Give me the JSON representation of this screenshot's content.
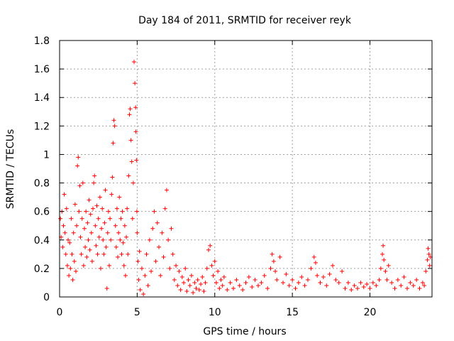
{
  "chart_data": {
    "type": "scatter",
    "title": "Day 184 of 2011, SRMTID for receiver reyk",
    "xlabel": "GPS time / hours",
    "ylabel": "SRMTID / TECUs",
    "xlim": [
      0,
      24
    ],
    "ylim": [
      0,
      1.8
    ],
    "xticks": [
      0,
      5,
      10,
      15,
      20
    ],
    "yticks": [
      0,
      0.2,
      0.4,
      0.6,
      0.8,
      1,
      1.2,
      1.4,
      1.6,
      1.8
    ],
    "xtick_labels": [
      "0",
      "5",
      "10",
      "15",
      "20"
    ],
    "ytick_labels": [
      "0",
      "0.2",
      "0.4",
      "0.6",
      "0.8",
      "1",
      "1.2",
      "1.4",
      "1.6",
      "1.8"
    ],
    "grid": true,
    "marker": "+",
    "color": "#ff0000",
    "series": [
      {
        "name": "SRMTID",
        "points": [
          [
            0.05,
            0.55
          ],
          [
            0.1,
            0.42
          ],
          [
            0.15,
            0.6
          ],
          [
            0.2,
            0.35
          ],
          [
            0.25,
            0.5
          ],
          [
            0.3,
            0.72
          ],
          [
            0.35,
            0.45
          ],
          [
            0.4,
            0.3
          ],
          [
            0.45,
            0.62
          ],
          [
            0.5,
            0.22
          ],
          [
            0.55,
            0.4
          ],
          [
            0.6,
            0.15
          ],
          [
            0.65,
            0.38
          ],
          [
            0.7,
            0.2
          ],
          [
            0.75,
            0.55
          ],
          [
            0.8,
            0.3
          ],
          [
            0.85,
            0.12
          ],
          [
            0.9,
            0.45
          ],
          [
            0.95,
            0.25
          ],
          [
            1.0,
            0.65
          ],
          [
            1.05,
            0.18
          ],
          [
            1.1,
            0.5
          ],
          [
            1.15,
            0.92
          ],
          [
            1.2,
            0.98
          ],
          [
            1.25,
            0.6
          ],
          [
            1.3,
            0.78
          ],
          [
            1.35,
            0.42
          ],
          [
            1.4,
            0.3
          ],
          [
            1.45,
            0.55
          ],
          [
            1.5,
            0.8
          ],
          [
            1.55,
            0.22
          ],
          [
            1.6,
            0.48
          ],
          [
            1.65,
            0.35
          ],
          [
            1.7,
            0.6
          ],
          [
            1.75,
            0.28
          ],
          [
            1.8,
            0.52
          ],
          [
            1.85,
            0.4
          ],
          [
            1.9,
            0.68
          ],
          [
            1.95,
            0.33
          ],
          [
            2.0,
            0.58
          ],
          [
            2.05,
            0.45
          ],
          [
            2.1,
            0.25
          ],
          [
            2.15,
            0.62
          ],
          [
            2.2,
            0.8
          ],
          [
            2.25,
            0.85
          ],
          [
            2.3,
            0.5
          ],
          [
            2.35,
            0.36
          ],
          [
            2.4,
            0.64
          ],
          [
            2.45,
            0.3
          ],
          [
            2.5,
            0.55
          ],
          [
            2.55,
            0.42
          ],
          [
            2.6,
            0.7
          ],
          [
            2.65,
            0.2
          ],
          [
            2.7,
            0.48
          ],
          [
            2.75,
            0.62
          ],
          [
            2.8,
            0.4
          ],
          [
            2.85,
            0.3
          ],
          [
            2.9,
            0.52
          ],
          [
            2.95,
            0.75
          ],
          [
            3.0,
            0.35
          ],
          [
            3.05,
            0.06
          ],
          [
            3.1,
            0.45
          ],
          [
            3.15,
            0.6
          ],
          [
            3.2,
            0.22
          ],
          [
            3.25,
            0.55
          ],
          [
            3.3,
            0.4
          ],
          [
            3.35,
            0.72
          ],
          [
            3.4,
            0.84
          ],
          [
            3.45,
            1.08
          ],
          [
            3.5,
            1.24
          ],
          [
            3.55,
            1.2
          ],
          [
            3.6,
            0.5
          ],
          [
            3.65,
            0.35
          ],
          [
            3.7,
            0.62
          ],
          [
            3.75,
            0.28
          ],
          [
            3.8,
            0.45
          ],
          [
            3.85,
            0.7
          ],
          [
            3.9,
            0.4
          ],
          [
            3.95,
            0.55
          ],
          [
            4.0,
            0.3
          ],
          [
            4.05,
            0.6
          ],
          [
            4.1,
            0.38
          ],
          [
            4.15,
            0.22
          ],
          [
            4.2,
            0.5
          ],
          [
            4.25,
            0.15
          ],
          [
            4.3,
            0.42
          ],
          [
            4.35,
            0.62
          ],
          [
            4.4,
            0.3
          ],
          [
            4.45,
            0.85
          ],
          [
            4.5,
            1.28
          ],
          [
            4.55,
            1.32
          ],
          [
            4.6,
            1.1
          ],
          [
            4.65,
            0.95
          ],
          [
            4.7,
            0.55
          ],
          [
            4.75,
            0.8
          ],
          [
            4.8,
            1.65
          ],
          [
            4.85,
            1.5
          ],
          [
            4.9,
            1.33
          ],
          [
            4.92,
            1.16
          ],
          [
            4.95,
            0.96
          ],
          [
            4.98,
            0.6
          ],
          [
            5.0,
            0.45
          ],
          [
            5.05,
            0.25
          ],
          [
            5.1,
            0.12
          ],
          [
            5.15,
            0.32
          ],
          [
            5.2,
            0.05
          ],
          [
            5.3,
            0.2
          ],
          [
            5.4,
            0.02
          ],
          [
            5.5,
            0.15
          ],
          [
            5.6,
            0.3
          ],
          [
            5.7,
            0.08
          ],
          [
            5.8,
            0.4
          ],
          [
            5.9,
            0.18
          ],
          [
            6.0,
            0.48
          ],
          [
            6.1,
            0.6
          ],
          [
            6.2,
            0.25
          ],
          [
            6.3,
            0.52
          ],
          [
            6.4,
            0.35
          ],
          [
            6.5,
            0.15
          ],
          [
            6.6,
            0.45
          ],
          [
            6.7,
            0.28
          ],
          [
            6.8,
            0.62
          ],
          [
            6.9,
            0.75
          ],
          [
            7.0,
            0.4
          ],
          [
            7.1,
            0.2
          ],
          [
            7.2,
            0.48
          ],
          [
            7.3,
            0.3
          ],
          [
            7.4,
            0.12
          ],
          [
            7.5,
            0.22
          ],
          [
            7.6,
            0.08
          ],
          [
            7.7,
            0.18
          ],
          [
            7.8,
            0.05
          ],
          [
            7.9,
            0.14
          ],
          [
            8.0,
            0.1
          ],
          [
            8.1,
            0.2
          ],
          [
            8.2,
            0.04
          ],
          [
            8.3,
            0.12
          ],
          [
            8.4,
            0.08
          ],
          [
            8.5,
            0.15
          ],
          [
            8.6,
            0.03
          ],
          [
            8.7,
            0.1
          ],
          [
            8.8,
            0.06
          ],
          [
            8.9,
            0.12
          ],
          [
            9.0,
            0.05
          ],
          [
            9.1,
            0.09
          ],
          [
            9.2,
            0.14
          ],
          [
            9.3,
            0.04
          ],
          [
            9.4,
            0.1
          ],
          [
            9.5,
            0.2
          ],
          [
            9.6,
            0.33
          ],
          [
            9.7,
            0.36
          ],
          [
            9.8,
            0.22
          ],
          [
            9.9,
            0.15
          ],
          [
            10.0,
            0.25
          ],
          [
            10.1,
            0.1
          ],
          [
            10.2,
            0.18
          ],
          [
            10.3,
            0.06
          ],
          [
            10.4,
            0.12
          ],
          [
            10.5,
            0.08
          ],
          [
            10.6,
            0.14
          ],
          [
            10.8,
            0.05
          ],
          [
            11.0,
            0.1
          ],
          [
            11.2,
            0.06
          ],
          [
            11.4,
            0.12
          ],
          [
            11.6,
            0.08
          ],
          [
            11.8,
            0.05
          ],
          [
            12.0,
            0.1
          ],
          [
            12.2,
            0.14
          ],
          [
            12.4,
            0.07
          ],
          [
            12.6,
            0.12
          ],
          [
            12.8,
            0.08
          ],
          [
            13.0,
            0.1
          ],
          [
            13.2,
            0.15
          ],
          [
            13.4,
            0.06
          ],
          [
            13.6,
            0.2
          ],
          [
            13.7,
            0.3
          ],
          [
            13.8,
            0.25
          ],
          [
            13.9,
            0.18
          ],
          [
            14.0,
            0.12
          ],
          [
            14.2,
            0.28
          ],
          [
            14.4,
            0.1
          ],
          [
            14.6,
            0.16
          ],
          [
            14.8,
            0.08
          ],
          [
            15.0,
            0.12
          ],
          [
            15.2,
            0.06
          ],
          [
            15.4,
            0.1
          ],
          [
            15.6,
            0.14
          ],
          [
            15.8,
            0.08
          ],
          [
            16.0,
            0.12
          ],
          [
            16.2,
            0.2
          ],
          [
            16.4,
            0.28
          ],
          [
            16.5,
            0.24
          ],
          [
            16.6,
            0.15
          ],
          [
            16.8,
            0.1
          ],
          [
            17.0,
            0.14
          ],
          [
            17.2,
            0.08
          ],
          [
            17.4,
            0.16
          ],
          [
            17.6,
            0.22
          ],
          [
            17.8,
            0.12
          ],
          [
            18.0,
            0.1
          ],
          [
            18.2,
            0.18
          ],
          [
            18.4,
            0.06
          ],
          [
            18.6,
            0.1
          ],
          [
            18.8,
            0.05
          ],
          [
            19.0,
            0.08
          ],
          [
            19.2,
            0.06
          ],
          [
            19.4,
            0.1
          ],
          [
            19.6,
            0.07
          ],
          [
            19.8,
            0.09
          ],
          [
            20.0,
            0.06
          ],
          [
            20.2,
            0.1
          ],
          [
            20.4,
            0.08
          ],
          [
            20.6,
            0.12
          ],
          [
            20.7,
            0.2
          ],
          [
            20.8,
            0.3
          ],
          [
            20.85,
            0.36
          ],
          [
            20.9,
            0.26
          ],
          [
            21.0,
            0.18
          ],
          [
            21.1,
            0.12
          ],
          [
            21.2,
            0.22
          ],
          [
            21.4,
            0.1
          ],
          [
            21.6,
            0.06
          ],
          [
            21.8,
            0.12
          ],
          [
            22.0,
            0.08
          ],
          [
            22.2,
            0.14
          ],
          [
            22.4,
            0.06
          ],
          [
            22.6,
            0.1
          ],
          [
            22.8,
            0.08
          ],
          [
            23.0,
            0.12
          ],
          [
            23.2,
            0.06
          ],
          [
            23.4,
            0.1
          ],
          [
            23.5,
            0.08
          ],
          [
            23.6,
            0.18
          ],
          [
            23.7,
            0.26
          ],
          [
            23.75,
            0.34
          ],
          [
            23.8,
            0.3
          ],
          [
            23.85,
            0.22
          ],
          [
            23.9,
            0.28
          ]
        ]
      }
    ]
  }
}
